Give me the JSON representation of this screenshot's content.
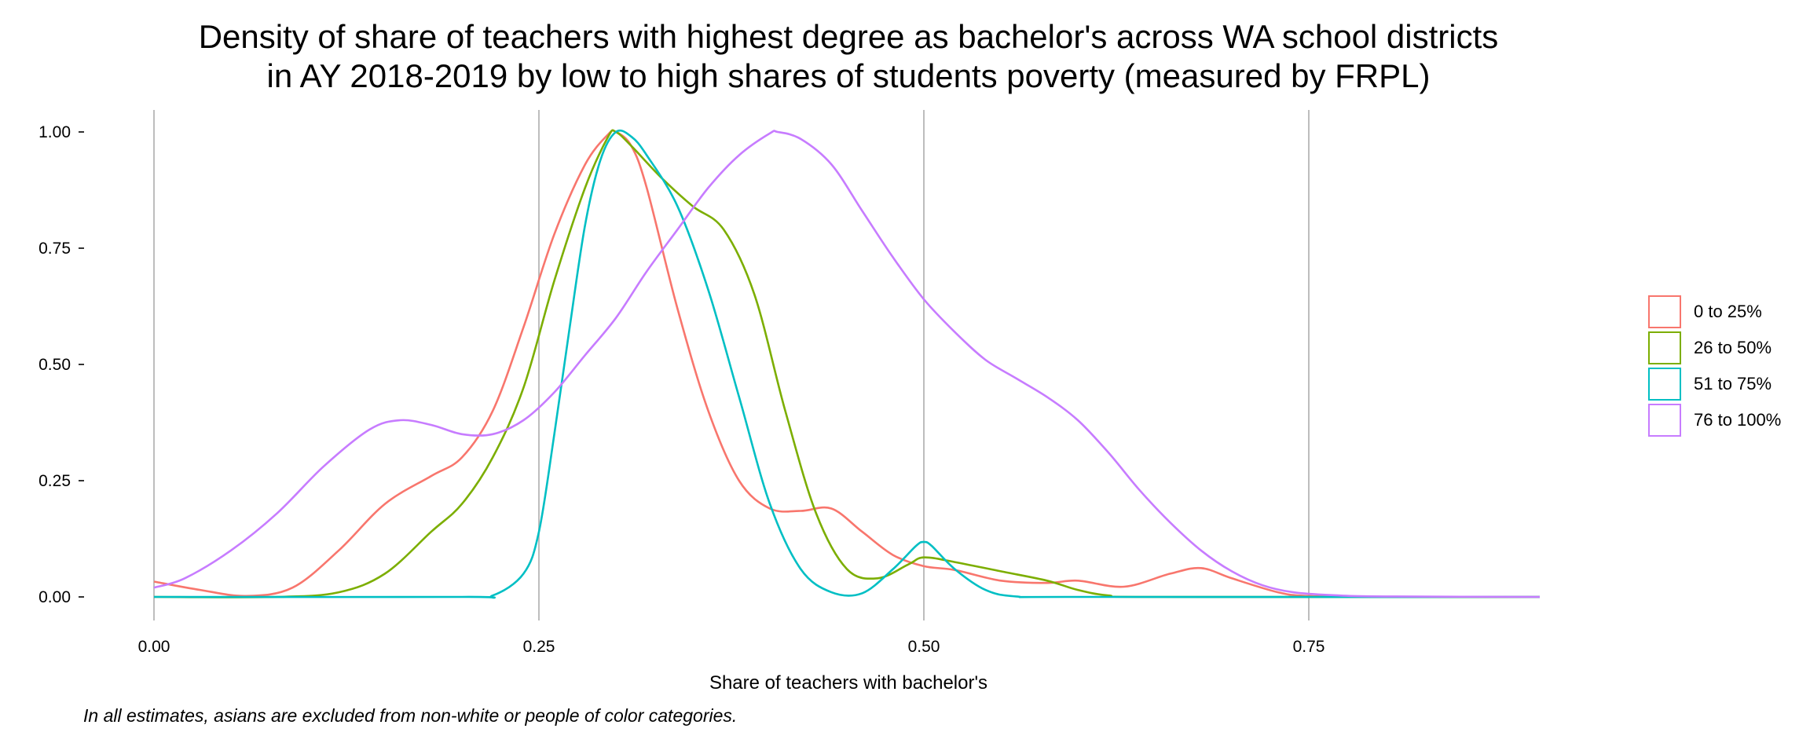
{
  "title_line1": "Density of share of teachers with highest degree as bachelor's across WA school districts",
  "title_line2": "in AY 2018-2019 by low to high shares of students poverty (measured by FRPL)",
  "caption": "In all estimates, asians are excluded from non-white or people of color categories.",
  "chart_data": {
    "type": "line",
    "title": "Density of share of teachers with highest degree as bachelor's across WA school districts in AY 2018-2019 by low to high shares of students poverty (measured by FRPL)",
    "xlabel": "Share of teachers with bachelor's",
    "ylabel": "",
    "xlim": [
      0,
      0.9
    ],
    "ylim": [
      0,
      1
    ],
    "x_ticks": [
      "0.00",
      "0.25",
      "0.50",
      "0.75"
    ],
    "y_ticks": [
      "0.00",
      "0.25",
      "0.50",
      "0.75",
      "1.00"
    ],
    "grid": "vertical major lines only",
    "legend_position": "right",
    "series": [
      {
        "name": "0 to 25%",
        "color": "#F8766D",
        "points": [
          [
            0,
            0.033
          ],
          [
            0.03,
            0.015
          ],
          [
            0.06,
            0.002
          ],
          [
            0.09,
            0.02
          ],
          [
            0.12,
            0.1
          ],
          [
            0.15,
            0.2
          ],
          [
            0.18,
            0.26
          ],
          [
            0.2,
            0.3
          ],
          [
            0.22,
            0.4
          ],
          [
            0.24,
            0.58
          ],
          [
            0.26,
            0.78
          ],
          [
            0.28,
            0.93
          ],
          [
            0.295,
            0.995
          ],
          [
            0.3,
            1.0
          ],
          [
            0.31,
            0.97
          ],
          [
            0.32,
            0.88
          ],
          [
            0.34,
            0.62
          ],
          [
            0.36,
            0.4
          ],
          [
            0.38,
            0.25
          ],
          [
            0.4,
            0.19
          ],
          [
            0.42,
            0.185
          ],
          [
            0.44,
            0.19
          ],
          [
            0.46,
            0.14
          ],
          [
            0.48,
            0.09
          ],
          [
            0.5,
            0.066
          ],
          [
            0.52,
            0.058
          ],
          [
            0.55,
            0.035
          ],
          [
            0.58,
            0.03
          ],
          [
            0.6,
            0.035
          ],
          [
            0.63,
            0.022
          ],
          [
            0.66,
            0.05
          ],
          [
            0.68,
            0.062
          ],
          [
            0.7,
            0.04
          ],
          [
            0.73,
            0.01
          ],
          [
            0.75,
            0.002
          ],
          [
            0.8,
            0.0
          ],
          [
            0.9,
            0.0
          ]
        ]
      },
      {
        "name": "26 to 50%",
        "color": "#7CAE00",
        "points": [
          [
            0,
            0.0
          ],
          [
            0.08,
            0.0
          ],
          [
            0.12,
            0.01
          ],
          [
            0.15,
            0.05
          ],
          [
            0.18,
            0.14
          ],
          [
            0.2,
            0.2
          ],
          [
            0.22,
            0.3
          ],
          [
            0.24,
            0.45
          ],
          [
            0.26,
            0.68
          ],
          [
            0.28,
            0.88
          ],
          [
            0.295,
            0.99
          ],
          [
            0.3,
            1.0
          ],
          [
            0.31,
            0.97
          ],
          [
            0.33,
            0.9
          ],
          [
            0.35,
            0.84
          ],
          [
            0.37,
            0.79
          ],
          [
            0.39,
            0.65
          ],
          [
            0.41,
            0.4
          ],
          [
            0.43,
            0.18
          ],
          [
            0.45,
            0.06
          ],
          [
            0.47,
            0.04
          ],
          [
            0.49,
            0.07
          ],
          [
            0.5,
            0.085
          ],
          [
            0.52,
            0.075
          ],
          [
            0.55,
            0.055
          ],
          [
            0.58,
            0.035
          ],
          [
            0.6,
            0.015
          ],
          [
            0.62,
            0.003
          ],
          [
            0.65,
            0.0
          ],
          [
            0.9,
            0.0
          ]
        ]
      },
      {
        "name": "51 to 75%",
        "color": "#00BFC4",
        "points": [
          [
            0,
            0.0
          ],
          [
            0.2,
            0.0
          ],
          [
            0.22,
            0.003
          ],
          [
            0.24,
            0.05
          ],
          [
            0.25,
            0.14
          ],
          [
            0.26,
            0.35
          ],
          [
            0.27,
            0.58
          ],
          [
            0.28,
            0.8
          ],
          [
            0.29,
            0.94
          ],
          [
            0.3,
            1.0
          ],
          [
            0.31,
            0.99
          ],
          [
            0.32,
            0.95
          ],
          [
            0.34,
            0.84
          ],
          [
            0.36,
            0.66
          ],
          [
            0.38,
            0.43
          ],
          [
            0.4,
            0.2
          ],
          [
            0.42,
            0.06
          ],
          [
            0.44,
            0.01
          ],
          [
            0.46,
            0.008
          ],
          [
            0.48,
            0.06
          ],
          [
            0.495,
            0.11
          ],
          [
            0.5,
            0.118
          ],
          [
            0.505,
            0.11
          ],
          [
            0.52,
            0.06
          ],
          [
            0.54,
            0.015
          ],
          [
            0.56,
            0.001
          ],
          [
            0.6,
            0.0
          ],
          [
            0.9,
            0.0
          ]
        ]
      },
      {
        "name": "76 to 100%",
        "color": "#C77CFF",
        "points": [
          [
            0,
            0.02
          ],
          [
            0.02,
            0.04
          ],
          [
            0.05,
            0.1
          ],
          [
            0.08,
            0.18
          ],
          [
            0.11,
            0.28
          ],
          [
            0.14,
            0.36
          ],
          [
            0.16,
            0.38
          ],
          [
            0.18,
            0.37
          ],
          [
            0.2,
            0.35
          ],
          [
            0.22,
            0.35
          ],
          [
            0.24,
            0.38
          ],
          [
            0.26,
            0.44
          ],
          [
            0.28,
            0.52
          ],
          [
            0.3,
            0.6
          ],
          [
            0.32,
            0.7
          ],
          [
            0.34,
            0.79
          ],
          [
            0.36,
            0.88
          ],
          [
            0.38,
            0.95
          ],
          [
            0.4,
            0.997
          ],
          [
            0.405,
            1.0
          ],
          [
            0.42,
            0.985
          ],
          [
            0.44,
            0.93
          ],
          [
            0.46,
            0.83
          ],
          [
            0.48,
            0.73
          ],
          [
            0.5,
            0.64
          ],
          [
            0.52,
            0.57
          ],
          [
            0.54,
            0.51
          ],
          [
            0.56,
            0.47
          ],
          [
            0.58,
            0.43
          ],
          [
            0.6,
            0.38
          ],
          [
            0.62,
            0.31
          ],
          [
            0.64,
            0.23
          ],
          [
            0.66,
            0.16
          ],
          [
            0.68,
            0.1
          ],
          [
            0.7,
            0.055
          ],
          [
            0.72,
            0.025
          ],
          [
            0.74,
            0.01
          ],
          [
            0.77,
            0.003
          ],
          [
            0.8,
            0.001
          ],
          [
            0.9,
            0.0
          ]
        ]
      }
    ]
  }
}
